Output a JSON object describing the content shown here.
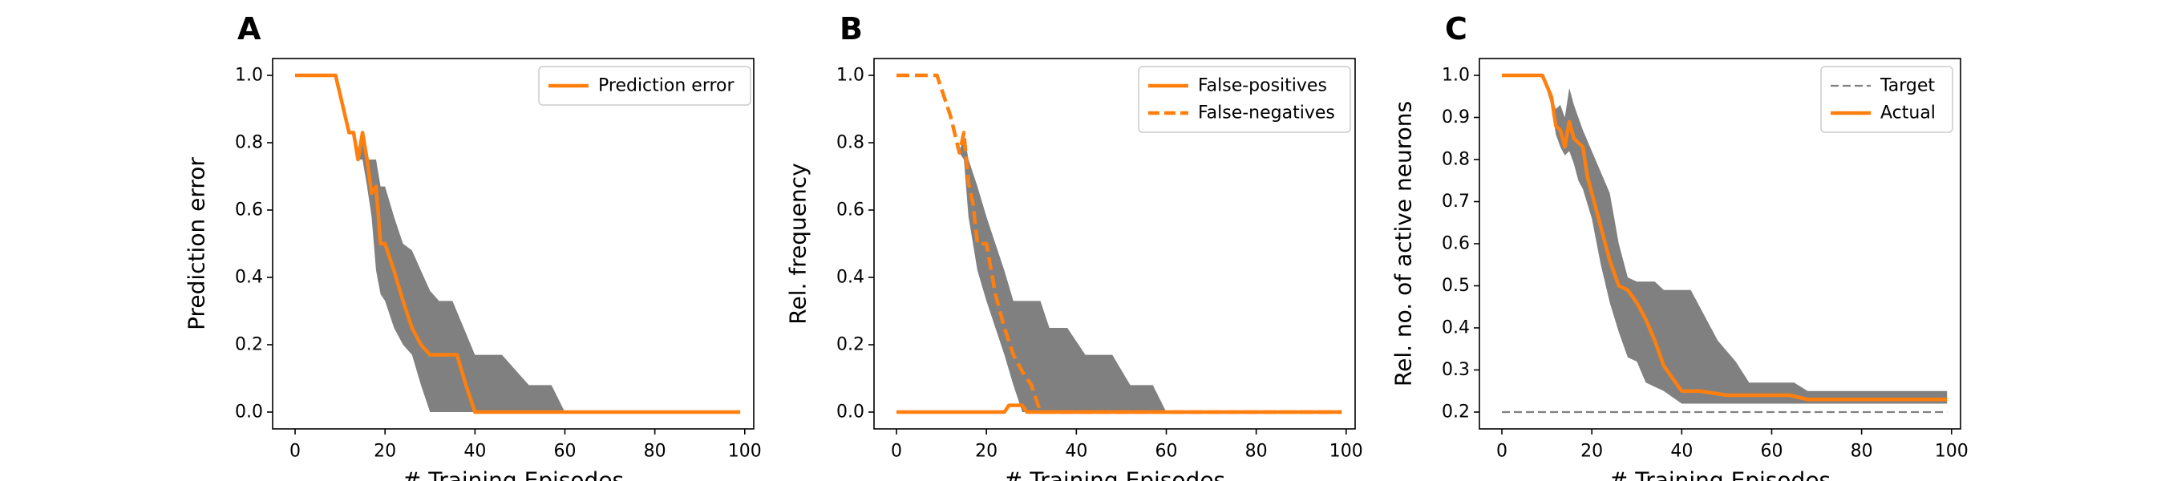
{
  "chart_data": [
    {
      "panel": "A",
      "type": "line",
      "xlabel": "# Training Episodes",
      "ylabel": "Prediction error",
      "xlim": [
        -5,
        102
      ],
      "ylim": [
        -0.05,
        1.05
      ],
      "xticks": [
        "0",
        "20",
        "40",
        "60",
        "80",
        "100"
      ],
      "xtick_values": [
        0,
        20,
        40,
        60,
        80,
        100
      ],
      "yticks": [
        "0.0",
        "0.2",
        "0.4",
        "0.6",
        "0.8",
        "1.0"
      ],
      "ytick_values": [
        0.0,
        0.2,
        0.4,
        0.6,
        0.8,
        1.0
      ],
      "legend_position": "top-right",
      "series": [
        {
          "name": "Prediction error",
          "style": "solid",
          "color": "#ff7f0e",
          "points": [
            [
              0,
              1.0
            ],
            [
              9,
              1.0
            ],
            [
              12,
              0.83
            ],
            [
              13,
              0.83
            ],
            [
              14,
              0.75
            ],
            [
              15,
              0.83
            ],
            [
              16,
              0.75
            ],
            [
              17,
              0.65
            ],
            [
              18,
              0.67
            ],
            [
              19,
              0.5
            ],
            [
              20,
              0.5
            ],
            [
              22,
              0.42
            ],
            [
              24,
              0.33
            ],
            [
              26,
              0.25
            ],
            [
              28,
              0.2
            ],
            [
              30,
              0.17
            ],
            [
              36,
              0.17
            ],
            [
              38,
              0.08
            ],
            [
              40,
              0.0
            ],
            [
              99,
              0.0
            ]
          ]
        }
      ],
      "band": {
        "color": "#808080",
        "upper": [
          [
            0,
            1.0
          ],
          [
            9,
            1.0
          ],
          [
            12,
            0.83
          ],
          [
            13,
            0.83
          ],
          [
            14,
            0.75
          ],
          [
            15,
            0.83
          ],
          [
            16,
            0.75
          ],
          [
            18,
            0.75
          ],
          [
            19,
            0.67
          ],
          [
            20,
            0.67
          ],
          [
            22,
            0.58
          ],
          [
            24,
            0.5
          ],
          [
            26,
            0.48
          ],
          [
            28,
            0.42
          ],
          [
            30,
            0.36
          ],
          [
            32,
            0.33
          ],
          [
            35,
            0.33
          ],
          [
            40,
            0.17
          ],
          [
            46,
            0.17
          ],
          [
            52,
            0.08
          ],
          [
            57,
            0.08
          ],
          [
            60,
            0.0
          ],
          [
            99,
            0.0
          ]
        ],
        "lower": [
          [
            0,
            1.0
          ],
          [
            9,
            1.0
          ],
          [
            12,
            0.83
          ],
          [
            13,
            0.83
          ],
          [
            14,
            0.75
          ],
          [
            15,
            0.75
          ],
          [
            16,
            0.67
          ],
          [
            17,
            0.58
          ],
          [
            18,
            0.42
          ],
          [
            19,
            0.35
          ],
          [
            20,
            0.33
          ],
          [
            22,
            0.25
          ],
          [
            24,
            0.2
          ],
          [
            26,
            0.17
          ],
          [
            28,
            0.08
          ],
          [
            30,
            0.0
          ],
          [
            99,
            0.0
          ]
        ]
      }
    },
    {
      "panel": "B",
      "type": "line",
      "xlabel": "# Training Episodes",
      "ylabel": "Rel. frequency",
      "xlim": [
        -5,
        102
      ],
      "ylim": [
        -0.05,
        1.05
      ],
      "xticks": [
        "0",
        "20",
        "40",
        "60",
        "80",
        "100"
      ],
      "xtick_values": [
        0,
        20,
        40,
        60,
        80,
        100
      ],
      "yticks": [
        "0.0",
        "0.2",
        "0.4",
        "0.6",
        "0.8",
        "1.0"
      ],
      "ytick_values": [
        0.0,
        0.2,
        0.4,
        0.6,
        0.8,
        1.0
      ],
      "legend_position": "top-right",
      "series": [
        {
          "name": "False-positives",
          "style": "solid",
          "color": "#ff7f0e",
          "points": [
            [
              0,
              0.0
            ],
            [
              24,
              0.0
            ],
            [
              25,
              0.02
            ],
            [
              28,
              0.02
            ],
            [
              29,
              0.0
            ],
            [
              99,
              0.0
            ]
          ]
        },
        {
          "name": "False-negatives",
          "style": "dashed",
          "color": "#ff7f0e",
          "points": [
            [
              0,
              1.0
            ],
            [
              9,
              1.0
            ],
            [
              12,
              0.88
            ],
            [
              14,
              0.77
            ],
            [
              15,
              0.83
            ],
            [
              16,
              0.68
            ],
            [
              17,
              0.62
            ],
            [
              18,
              0.5
            ],
            [
              20,
              0.5
            ],
            [
              22,
              0.35
            ],
            [
              24,
              0.25
            ],
            [
              26,
              0.17
            ],
            [
              28,
              0.12
            ],
            [
              30,
              0.08
            ],
            [
              32,
              0.0
            ],
            [
              99,
              0.0
            ]
          ]
        }
      ],
      "band": {
        "color": "#808080",
        "upper": [
          [
            0,
            1.0
          ],
          [
            9,
            1.0
          ],
          [
            12,
            0.88
          ],
          [
            14,
            0.77
          ],
          [
            15,
            0.83
          ],
          [
            16,
            0.75
          ],
          [
            18,
            0.67
          ],
          [
            20,
            0.58
          ],
          [
            22,
            0.5
          ],
          [
            24,
            0.42
          ],
          [
            26,
            0.33
          ],
          [
            32,
            0.33
          ],
          [
            34,
            0.25
          ],
          [
            38,
            0.25
          ],
          [
            42,
            0.17
          ],
          [
            48,
            0.17
          ],
          [
            52,
            0.08
          ],
          [
            57,
            0.08
          ],
          [
            60,
            0.0
          ],
          [
            99,
            0.0
          ]
        ],
        "lower": [
          [
            0,
            1.0
          ],
          [
            9,
            1.0
          ],
          [
            12,
            0.88
          ],
          [
            14,
            0.77
          ],
          [
            15,
            0.75
          ],
          [
            16,
            0.58
          ],
          [
            18,
            0.42
          ],
          [
            20,
            0.33
          ],
          [
            22,
            0.25
          ],
          [
            24,
            0.17
          ],
          [
            26,
            0.08
          ],
          [
            28,
            0.0
          ],
          [
            99,
            0.0
          ]
        ]
      }
    },
    {
      "panel": "C",
      "type": "line",
      "xlabel": "# Training Episodes",
      "ylabel": "Rel. no. of active neurons",
      "xlim": [
        -5,
        102
      ],
      "ylim": [
        0.16,
        1.04
      ],
      "xticks": [
        "0",
        "20",
        "40",
        "60",
        "80",
        "100"
      ],
      "xtick_values": [
        0,
        20,
        40,
        60,
        80,
        100
      ],
      "yticks": [
        "0.2",
        "0.3",
        "0.4",
        "0.5",
        "0.6",
        "0.7",
        "0.8",
        "0.9",
        "1.0"
      ],
      "ytick_values": [
        0.2,
        0.3,
        0.4,
        0.5,
        0.6,
        0.7,
        0.8,
        0.9,
        1.0
      ],
      "legend_position": "top-right",
      "series": [
        {
          "name": "Target",
          "style": "dashed-thin",
          "color": "#808080",
          "points": [
            [
              0,
              0.2
            ],
            [
              99,
              0.2
            ]
          ]
        },
        {
          "name": "Actual",
          "style": "solid",
          "color": "#ff7f0e",
          "points": [
            [
              0,
              1.0
            ],
            [
              9,
              1.0
            ],
            [
              11,
              0.95
            ],
            [
              12,
              0.88
            ],
            [
              13,
              0.87
            ],
            [
              14,
              0.83
            ],
            [
              15,
              0.89
            ],
            [
              16,
              0.85
            ],
            [
              17,
              0.84
            ],
            [
              18,
              0.83
            ],
            [
              19,
              0.76
            ],
            [
              20,
              0.72
            ],
            [
              22,
              0.64
            ],
            [
              24,
              0.56
            ],
            [
              26,
              0.5
            ],
            [
              28,
              0.49
            ],
            [
              30,
              0.46
            ],
            [
              32,
              0.42
            ],
            [
              34,
              0.37
            ],
            [
              36,
              0.31
            ],
            [
              38,
              0.28
            ],
            [
              40,
              0.25
            ],
            [
              44,
              0.25
            ],
            [
              50,
              0.24
            ],
            [
              60,
              0.24
            ],
            [
              64,
              0.24
            ],
            [
              68,
              0.23
            ],
            [
              99,
              0.23
            ]
          ]
        }
      ],
      "band": {
        "color": "#808080",
        "upper": [
          [
            0,
            1.0
          ],
          [
            9,
            1.0
          ],
          [
            11,
            0.95
          ],
          [
            12,
            0.92
          ],
          [
            13,
            0.93
          ],
          [
            14,
            0.9
          ],
          [
            15,
            0.97
          ],
          [
            16,
            0.93
          ],
          [
            17,
            0.9
          ],
          [
            18,
            0.87
          ],
          [
            20,
            0.82
          ],
          [
            22,
            0.77
          ],
          [
            24,
            0.72
          ],
          [
            26,
            0.6
          ],
          [
            28,
            0.52
          ],
          [
            30,
            0.51
          ],
          [
            34,
            0.51
          ],
          [
            36,
            0.49
          ],
          [
            42,
            0.49
          ],
          [
            48,
            0.37
          ],
          [
            52,
            0.32
          ],
          [
            55,
            0.27
          ],
          [
            65,
            0.27
          ],
          [
            68,
            0.25
          ],
          [
            99,
            0.25
          ]
        ],
        "lower": [
          [
            0,
            1.0
          ],
          [
            9,
            1.0
          ],
          [
            11,
            0.93
          ],
          [
            12,
            0.86
          ],
          [
            13,
            0.83
          ],
          [
            14,
            0.81
          ],
          [
            15,
            0.82
          ],
          [
            16,
            0.79
          ],
          [
            17,
            0.75
          ],
          [
            18,
            0.73
          ],
          [
            20,
            0.66
          ],
          [
            22,
            0.55
          ],
          [
            24,
            0.46
          ],
          [
            26,
            0.39
          ],
          [
            28,
            0.33
          ],
          [
            30,
            0.32
          ],
          [
            32,
            0.27
          ],
          [
            36,
            0.25
          ],
          [
            40,
            0.22
          ],
          [
            50,
            0.22
          ],
          [
            99,
            0.22
          ]
        ]
      }
    }
  ]
}
